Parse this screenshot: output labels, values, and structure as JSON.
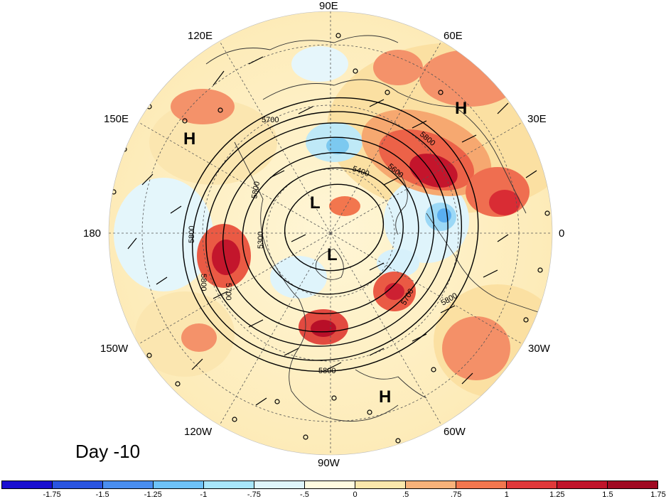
{
  "panel_title": "Day -10",
  "longitude_labels": {
    "top": "90E",
    "top_left": "120E",
    "top_right": "60E",
    "upper_left": "150E",
    "upper_right": "30E",
    "left": "180",
    "right": "0",
    "lower_left": "150W",
    "lower_right": "30W",
    "bottom_left": "120W",
    "bottom_right": "60W",
    "bottom": "90W"
  },
  "pressure_centers": [
    {
      "label": "H",
      "name": "high-north-europe"
    },
    {
      "label": "H",
      "name": "high-east-asia"
    },
    {
      "label": "L",
      "name": "low-siberia"
    },
    {
      "label": "L",
      "name": "low-canada"
    },
    {
      "label": "H",
      "name": "high-caribbean"
    }
  ],
  "contour_labels": [
    "5700",
    "5800",
    "5600",
    "5400",
    "5800",
    "5800",
    "5300",
    "5800",
    "5700",
    "5800",
    "5700",
    "5800"
  ],
  "colorbar": {
    "colors": [
      "#1a0fd0",
      "#2a54e0",
      "#4a8ef0",
      "#6ec2f8",
      "#a8e6fb",
      "#dff5fb",
      "#fffbe0",
      "#fbe8ac",
      "#f8b27a",
      "#f2764e",
      "#e0383a",
      "#c0132a",
      "#a00a22"
    ],
    "tick_labels": [
      "-1.75",
      "-1.5",
      "-1.25",
      "-1",
      "-.75",
      "-.5",
      "0",
      ".5",
      ".75",
      "1",
      "1.25",
      "1.5",
      "1.75"
    ]
  }
}
